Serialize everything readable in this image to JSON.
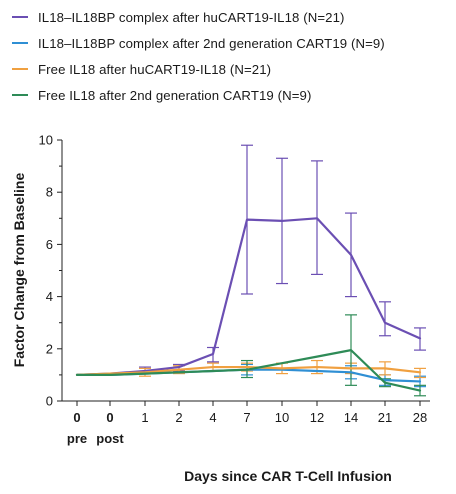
{
  "chart_data": {
    "type": "line",
    "title": "",
    "xlabel": "Days since CAR T-Cell Infusion",
    "ylabel": "Factor Change from Baseline",
    "ylim": [
      0,
      10
    ],
    "yticks": [
      "0",
      "2",
      "4",
      "6",
      "8",
      "10"
    ],
    "yticks_minor": [
      1,
      3,
      5,
      7,
      9
    ],
    "categories": [
      "0",
      "0",
      "1",
      "2",
      "4",
      "7",
      "10",
      "12",
      "14",
      "21",
      "28"
    ],
    "category_sublabels": [
      "pre",
      "post",
      "",
      "",
      "",
      "",
      "",
      "",
      "",
      "",
      ""
    ],
    "legend_position": "top",
    "grid": false,
    "series": [
      {
        "name": "IL18–IL18BP complex after huCART19-IL18 (N=21)",
        "color": "#6b4fb3",
        "values": [
          1.0,
          1.05,
          1.15,
          1.3,
          1.8,
          6.95,
          6.9,
          7.0,
          5.6,
          3.0,
          2.4
        ],
        "error_low": [
          null,
          null,
          1.05,
          1.15,
          1.5,
          4.1,
          4.5,
          4.85,
          4.0,
          2.5,
          1.95
        ],
        "error_high": [
          null,
          null,
          1.3,
          1.4,
          2.05,
          9.8,
          9.3,
          9.2,
          7.2,
          3.8,
          2.8
        ]
      },
      {
        "name": "IL18–IL18BP complex after 2nd generation CART19 (N=9)",
        "color": "#2f8fd4",
        "values": [
          1.0,
          1.0,
          1.05,
          1.1,
          1.15,
          1.2,
          1.2,
          1.15,
          1.1,
          0.8,
          0.75
        ],
        "error_low": [
          null,
          null,
          null,
          null,
          null,
          1.0,
          null,
          null,
          0.85,
          0.6,
          0.55
        ],
        "error_high": [
          null,
          null,
          null,
          null,
          null,
          1.4,
          null,
          null,
          1.35,
          1.0,
          0.95
        ]
      },
      {
        "name": "Free IL18 after huCART19-IL18 (N=21)",
        "color": "#f0a040",
        "values": [
          1.0,
          1.05,
          1.1,
          1.2,
          1.3,
          1.3,
          1.25,
          1.3,
          1.25,
          1.25,
          1.1
        ],
        "error_low": [
          null,
          null,
          0.95,
          1.05,
          1.15,
          1.15,
          1.05,
          1.05,
          1.05,
          1.0,
          0.9
        ],
        "error_high": [
          null,
          null,
          1.25,
          1.35,
          1.45,
          1.45,
          1.45,
          1.55,
          1.45,
          1.5,
          1.25
        ]
      },
      {
        "name": "Free IL18 after 2nd generation CART19 (N=9)",
        "color": "#2e8b57",
        "values": [
          1.0,
          1.0,
          1.05,
          1.1,
          1.15,
          1.2,
          1.45,
          1.7,
          1.95,
          0.7,
          0.4
        ],
        "error_low": [
          null,
          null,
          null,
          null,
          null,
          0.9,
          null,
          null,
          0.6,
          0.55,
          0.2
        ],
        "error_high": [
          null,
          null,
          null,
          null,
          null,
          1.55,
          null,
          null,
          3.3,
          0.85,
          0.6
        ]
      }
    ]
  }
}
